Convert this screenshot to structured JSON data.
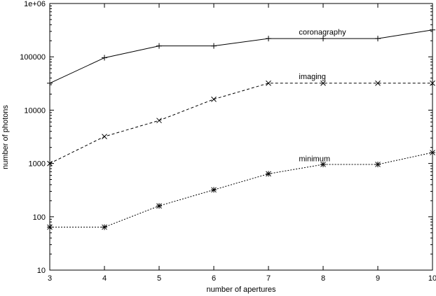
{
  "chart_data": {
    "type": "line",
    "title": "",
    "xlabel": "number of apertures",
    "ylabel": "number of photons",
    "x": [
      3,
      4,
      5,
      6,
      7,
      8,
      9,
      10
    ],
    "xlim": [
      3,
      10
    ],
    "ylim": [
      10,
      1000000
    ],
    "yscale": "log",
    "grid": false,
    "x_tick_labels": [
      "3",
      "4",
      "5",
      "6",
      "7",
      "8",
      "9",
      "10"
    ],
    "y_ticks": [
      10,
      100,
      1000,
      10000,
      100000,
      1000000
    ],
    "y_tick_labels": [
      "10",
      "100",
      "1000",
      "10000",
      "100000",
      "1e+06"
    ],
    "series": [
      {
        "name": "coronagraphy",
        "values": [
          32000,
          96000,
          160000,
          160000,
          220000,
          220000,
          220000,
          320000
        ],
        "line_style": "solid",
        "marker": "plus",
        "label_at": {
          "x": 7.3,
          "y": 260000
        }
      },
      {
        "name": "imaging",
        "values": [
          1000,
          3200,
          6400,
          16000,
          32000,
          32000,
          32000,
          32000
        ],
        "line_style": "dashed",
        "marker": "x",
        "label_at": {
          "x": 7.3,
          "y": 38000
        }
      },
      {
        "name": "minimum",
        "values": [
          64,
          64,
          160,
          320,
          640,
          960,
          960,
          1600
        ],
        "line_style": "dotted",
        "marker": "star",
        "label_at": {
          "x": 7.3,
          "y": 1100
        }
      }
    ]
  }
}
